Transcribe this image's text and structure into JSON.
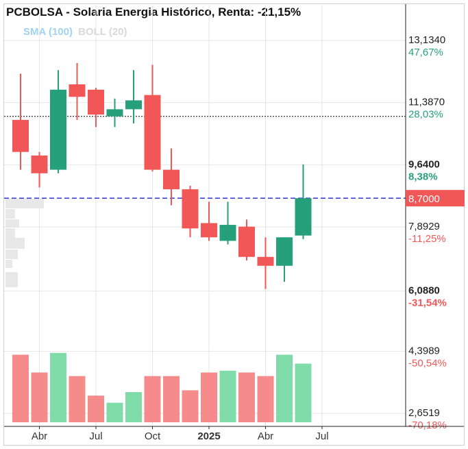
{
  "chart_data": {
    "type": "candlestick",
    "title": "PCBOLSA - Solaria Energia Histórico, Renta: -21,15%",
    "indicators": [
      {
        "label": "SMA (100)",
        "color": "#9fd3f2"
      },
      {
        "label": "BOLL (20)",
        "color": "#d9d9d9"
      }
    ],
    "colors": {
      "up": "#26a07a",
      "down": "#f25757",
      "vol_up": "#7fdca9",
      "vol_down": "#f58b8b",
      "price_line": "#2e33d6",
      "price_tag": "#f25757"
    },
    "ylim": [
      2.45,
      14.0
    ],
    "y_ticks": [
      {
        "price": "13,1340",
        "pct": "47,67%",
        "value": 13.134,
        "pct_color": "#26a07a",
        "bold": false
      },
      {
        "price": "11,3870",
        "pct": "28,03%",
        "value": 11.387,
        "pct_color": "#26a07a",
        "bold": false
      },
      {
        "price": "9,6400",
        "pct": "8,38%",
        "value": 9.64,
        "pct_color": "#26a07a",
        "bold": true
      },
      {
        "price": "7,8929",
        "pct": "-11,25%",
        "value": 7.8929,
        "pct_color": "#f25757",
        "bold": false
      },
      {
        "price": "6,0880",
        "pct": "-31,54%",
        "value": 6.088,
        "pct_color": "#f25757",
        "bold": true
      },
      {
        "price": "4,3989",
        "pct": "-50,54%",
        "value": 4.3989,
        "pct_color": "#f25757",
        "bold": false
      },
      {
        "price": "2,6519",
        "pct": "-70,18%",
        "value": 2.6519,
        "pct_color": "#f25757",
        "bold": false
      }
    ],
    "current_price": {
      "label": "8,7000",
      "value": 8.7
    },
    "reference_line": {
      "value": 11.0,
      "style": "dotted"
    },
    "x_ticks": [
      {
        "label": "Abr",
        "index": 1,
        "bold": false
      },
      {
        "label": "Jul",
        "index": 4,
        "bold": false
      },
      {
        "label": "Oct",
        "index": 7,
        "bold": false
      },
      {
        "label": "2025",
        "index": 10,
        "bold": true
      },
      {
        "label": "Abr",
        "index": 13,
        "bold": false
      },
      {
        "label": "Jul",
        "index": 16,
        "bold": false
      }
    ],
    "candles": [
      {
        "open": 10.9,
        "high": 12.2,
        "low": 9.5,
        "close": 10.0
      },
      {
        "open": 9.9,
        "high": 10.0,
        "low": 9.0,
        "close": 9.4
      },
      {
        "open": 9.5,
        "high": 12.3,
        "low": 9.4,
        "close": 11.75
      },
      {
        "open": 11.9,
        "high": 12.5,
        "low": 10.9,
        "close": 11.55
      },
      {
        "open": 11.75,
        "high": 11.8,
        "low": 10.7,
        "close": 11.05
      },
      {
        "open": 11.0,
        "high": 11.5,
        "low": 10.7,
        "close": 11.2
      },
      {
        "open": 11.2,
        "high": 12.3,
        "low": 10.8,
        "close": 11.45
      },
      {
        "open": 11.6,
        "high": 12.45,
        "low": 9.45,
        "close": 9.5
      },
      {
        "open": 9.5,
        "high": 10.1,
        "low": 8.5,
        "close": 8.95
      },
      {
        "open": 8.95,
        "high": 9.05,
        "low": 7.6,
        "close": 7.85
      },
      {
        "open": 8.0,
        "high": 8.6,
        "low": 7.5,
        "close": 7.6
      },
      {
        "open": 7.5,
        "high": 8.6,
        "low": 7.4,
        "close": 7.95
      },
      {
        "open": 7.9,
        "high": 8.1,
        "low": 6.95,
        "close": 7.05
      },
      {
        "open": 7.05,
        "high": 7.6,
        "low": 6.15,
        "close": 6.8
      },
      {
        "open": 6.8,
        "high": 7.55,
        "low": 6.35,
        "close": 7.6
      },
      {
        "open": 7.65,
        "high": 9.65,
        "low": 7.55,
        "close": 8.7
      }
    ],
    "volume_ylim": [
      2.45,
      4.65
    ],
    "volume": [
      4.3,
      3.8,
      4.35,
      3.7,
      3.15,
      2.95,
      3.25,
      3.7,
      3.7,
      3.3,
      3.8,
      3.85,
      3.8,
      3.7,
      4.3,
      4.05
    ]
  }
}
